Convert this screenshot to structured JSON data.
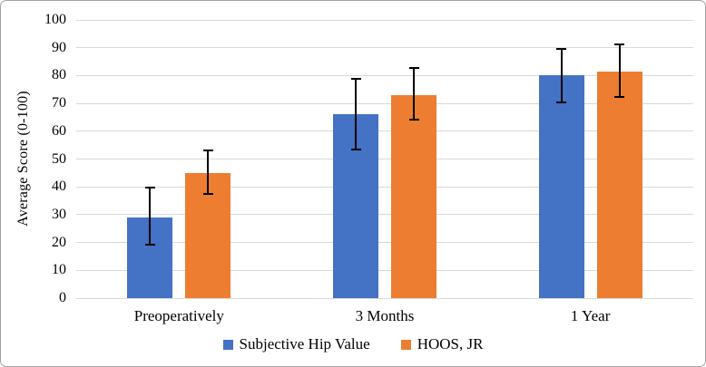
{
  "chart_data": {
    "type": "bar",
    "title": "",
    "xlabel": "",
    "ylabel": "Average Score (0-100)",
    "ylim": [
      0,
      100
    ],
    "ytick_step": 10,
    "grid": true,
    "grid_color": "#d9d9d9",
    "error_bar_color": "#000000",
    "legend_position": "bottom",
    "categories": [
      "Preoperatively",
      "3 Months",
      "1 Year"
    ],
    "series": [
      {
        "name": "Subjective Hip Value",
        "color": "#4472C4",
        "values": [
          29,
          66,
          80
        ],
        "error_low": [
          19,
          53,
          70
        ],
        "error_high": [
          40,
          79,
          90
        ]
      },
      {
        "name": "HOOS, JR",
        "color": "#ED7D31",
        "values": [
          45,
          73,
          81.5
        ],
        "error_low": [
          37,
          64,
          72
        ],
        "error_high": [
          53.5,
          83,
          91.5
        ]
      }
    ]
  }
}
